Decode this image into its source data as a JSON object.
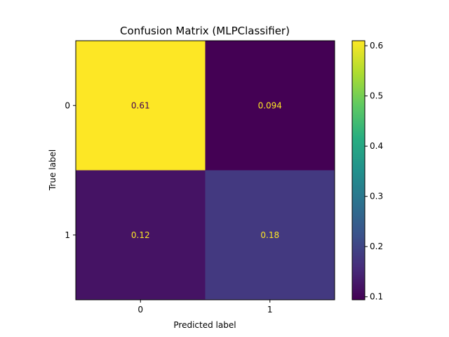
{
  "chart_data": {
    "type": "heatmap",
    "title": "Confusion Matrix (MLPClassifier)",
    "xlabel": "Predicted label",
    "ylabel": "True label",
    "x_categories": [
      "0",
      "1"
    ],
    "y_categories": [
      "0",
      "1"
    ],
    "values": [
      [
        0.61,
        0.094
      ],
      [
        0.12,
        0.18
      ]
    ],
    "value_labels": [
      [
        "0.61",
        "0.094"
      ],
      [
        "0.12",
        "0.18"
      ]
    ],
    "colormap": "viridis",
    "colorbar": {
      "range": [
        0.094,
        0.61
      ],
      "ticks": [
        0.1,
        0.2,
        0.3,
        0.4,
        0.5,
        0.6
      ],
      "tick_labels": [
        "0.1",
        "0.2",
        "0.3",
        "0.4",
        "0.5",
        "0.6"
      ]
    },
    "label_colors": {
      "on_dark": "#fde725",
      "on_light": "#440154"
    }
  }
}
